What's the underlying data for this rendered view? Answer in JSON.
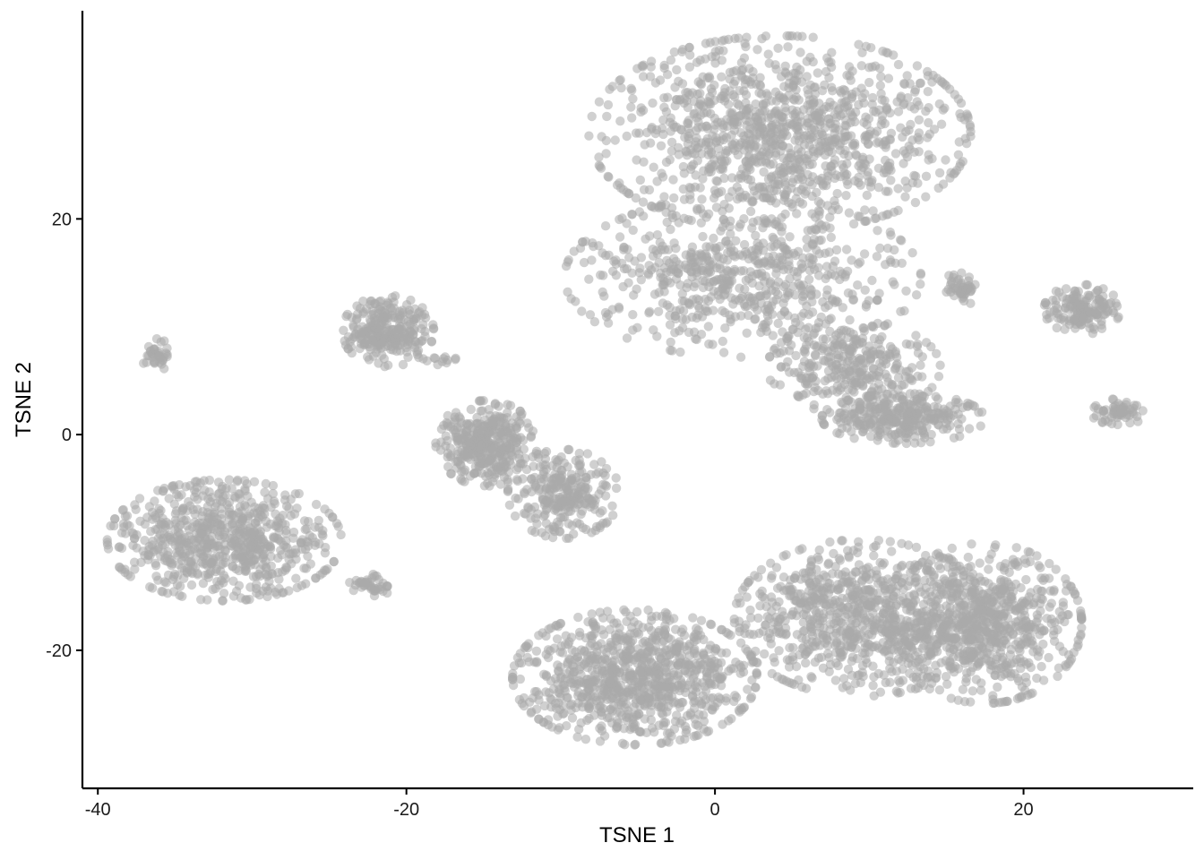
{
  "chart_data": {
    "type": "scatter",
    "title": "",
    "xlabel": "TSNE 1",
    "ylabel": "TSNE 2",
    "xlim": [
      -41,
      31
    ],
    "ylim": [
      -32.8,
      39.3
    ],
    "x_ticks": [
      -40,
      -20,
      0,
      20
    ],
    "x_tick_labels": [
      "-40",
      "-20",
      "0",
      "20"
    ],
    "y_ticks": [
      -20,
      0,
      20
    ],
    "y_tick_labels": [
      "-20",
      "0",
      "20"
    ],
    "grid": false,
    "legend": "none",
    "point_color": "#A9A9A9",
    "point_opacity": 0.55,
    "clusters": [
      {
        "cx": 4.2,
        "cy": 27.9,
        "sx": 7.5,
        "sy": 5.5,
        "n": 1100
      },
      {
        "cx": 1.8,
        "cy": 14.6,
        "sx": 7.0,
        "sy": 4.5,
        "n": 650
      },
      {
        "cx": 9.0,
        "cy": 6.2,
        "sx": 3.4,
        "sy": 2.6,
        "n": 300
      },
      {
        "cx": 12.2,
        "cy": 1.5,
        "sx": 3.2,
        "sy": 1.4,
        "n": 300
      },
      {
        "cx": -31.8,
        "cy": -9.8,
        "sx": 4.6,
        "sy": 3.4,
        "n": 700
      },
      {
        "cx": -21.2,
        "cy": 9.6,
        "sx": 1.8,
        "sy": 2.0,
        "n": 260
      },
      {
        "cx": -14.8,
        "cy": -0.8,
        "sx": 2.0,
        "sy": 2.4,
        "n": 360
      },
      {
        "cx": -9.8,
        "cy": -5.5,
        "sx": 2.2,
        "sy": 2.5,
        "n": 260
      },
      {
        "cx": -5.2,
        "cy": -22.5,
        "sx": 4.8,
        "sy": 3.8,
        "n": 900
      },
      {
        "cx": 9.5,
        "cy": -17.0,
        "sx": 5.0,
        "sy": 4.4,
        "n": 800
      },
      {
        "cx": 17.5,
        "cy": -17.5,
        "sx": 3.8,
        "sy": 4.5,
        "n": 700
      },
      {
        "cx": 23.8,
        "cy": 11.6,
        "sx": 1.5,
        "sy": 1.4,
        "n": 150
      },
      {
        "cx": 26.1,
        "cy": 2.0,
        "sx": 1.0,
        "sy": 0.8,
        "n": 55
      },
      {
        "cx": 16.0,
        "cy": 13.6,
        "sx": 0.7,
        "sy": 1.0,
        "n": 45
      },
      {
        "cx": -36.2,
        "cy": 7.4,
        "sx": 0.6,
        "sy": 0.9,
        "n": 35
      },
      {
        "cx": -22.2,
        "cy": -13.8,
        "sx": 0.9,
        "sy": 0.7,
        "n": 40
      },
      {
        "cx": -17.8,
        "cy": 6.9,
        "sx": 0.7,
        "sy": 0.3,
        "n": 12
      }
    ]
  }
}
